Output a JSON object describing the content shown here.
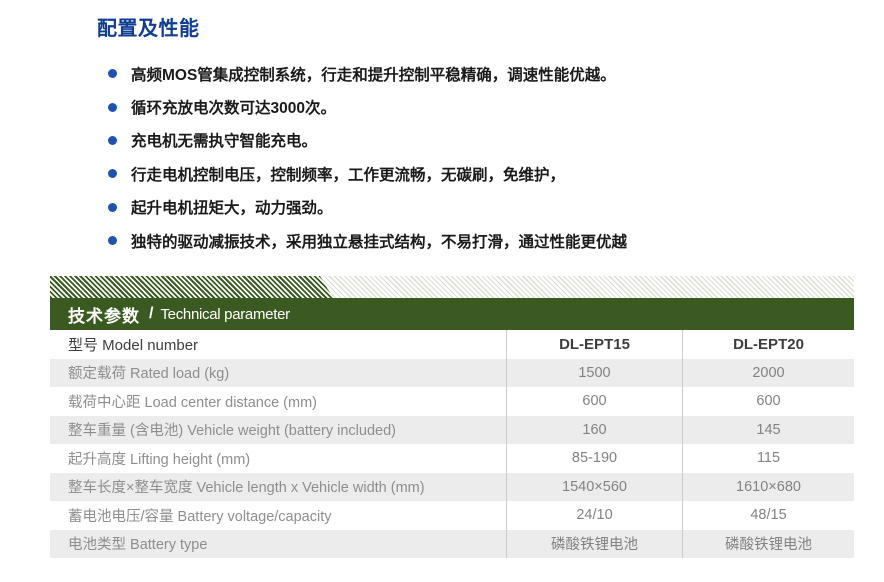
{
  "colors": {
    "title_blue": "#103d92",
    "bullet_blue": "#1d53ad",
    "green": "#3b5a21",
    "row_gray": "#ececec",
    "label_gray": "#8e8e8e"
  },
  "features": {
    "title": "配置及性能",
    "items": [
      "高频MOS管集成控制系统，行走和提升控制平稳精确，调速性能优越。",
      "循环充放电次数可达3000次。",
      "充电机无需执守智能充电。",
      "行走电机控制电压，控制频率，工作更流畅，无碳刷，免维护，",
      "起升电机扭矩大，动力强劲。",
      "独特的驱动减振技术，采用独立悬挂式结构，不易打滑，通过性能更优越"
    ]
  },
  "tech_bar": {
    "title_zh": "技术参数",
    "separator": "/",
    "title_en": "Technical parameter"
  },
  "tech_table": {
    "rows": [
      {
        "label": "型号  Model number",
        "v1": "DL-EPT15",
        "v2": "DL-EPT20"
      },
      {
        "label": "额定载荷 Rated load (kg)",
        "v1": "1500",
        "v2": "2000"
      },
      {
        "label": "载荷中心距 Load center distance (mm)",
        "v1": "600",
        "v2": "600"
      },
      {
        "label": "整车重量 (含电池) Vehicle weight (battery included)",
        "v1": "160",
        "v2": "145"
      },
      {
        "label": "起升高度 Lifting height (mm)",
        "v1": "85-190",
        "v2": "115"
      },
      {
        "label": "整车长度×整车宽度 Vehicle length x Vehicle width (mm)",
        "v1": "1540×560",
        "v2": "1610×680"
      },
      {
        "label": "蓄电池电压/容量 Battery voltage/capacity",
        "v1": "24/10",
        "v2": "48/15"
      },
      {
        "label": "电池类型 Battery type",
        "v1": "磷酸铁锂电池",
        "v2": "磷酸铁锂电池"
      }
    ]
  }
}
